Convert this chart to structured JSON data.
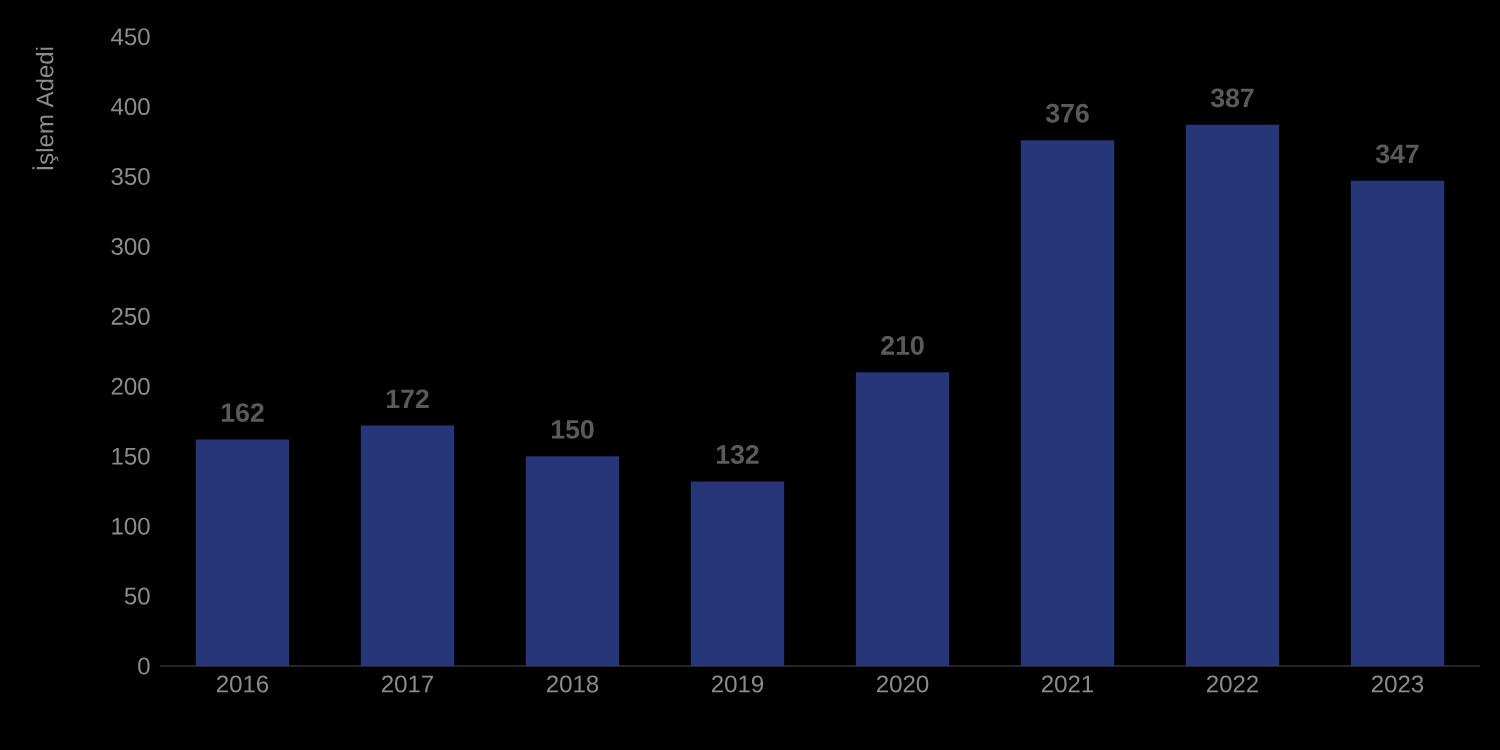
{
  "chart_data": {
    "type": "bar",
    "ylabel": "İşlem Adedi",
    "categories": [
      "2016",
      "2017",
      "2018",
      "2019",
      "2020",
      "2021",
      "2022",
      "2023"
    ],
    "values": [
      162,
      172,
      150,
      132,
      210,
      376,
      387,
      347
    ],
    "color": "#263678",
    "ylim": [
      0,
      450
    ],
    "yticks": [
      0,
      50,
      100,
      150,
      200,
      250,
      300,
      350,
      400,
      450
    ],
    "data_labels": true
  }
}
